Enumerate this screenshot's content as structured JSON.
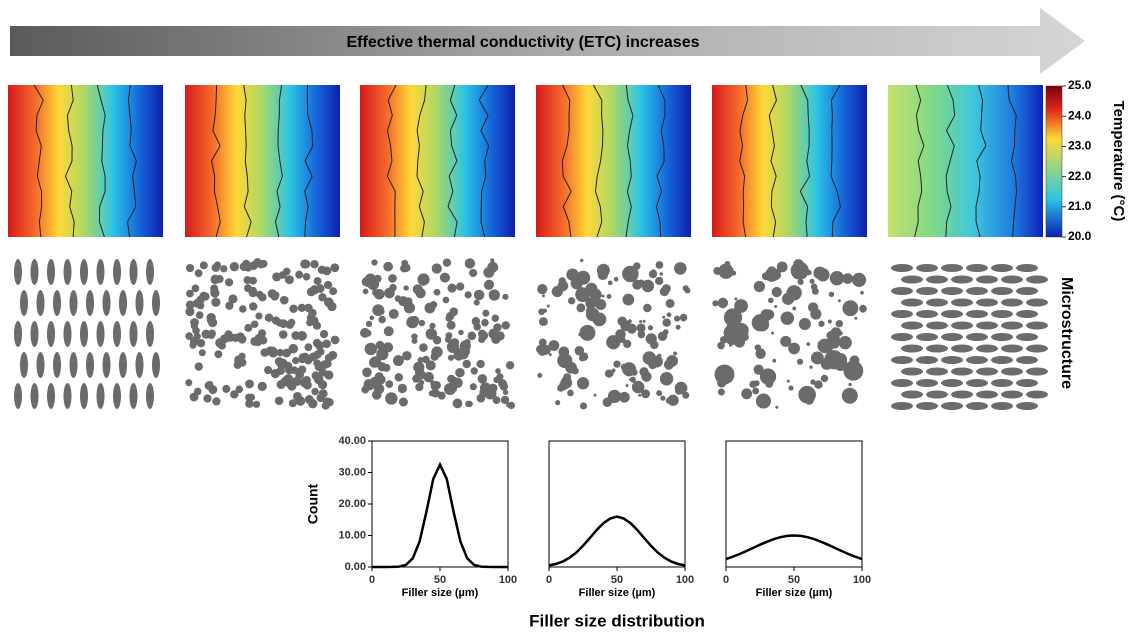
{
  "banner": "Effective thermal conductivity (ETC) increases",
  "colorbar": {
    "label": "Temperature (°C)",
    "lim": [
      20,
      25
    ],
    "ticks": [
      {
        "value": 20,
        "label": "20.0"
      },
      {
        "value": 21,
        "label": "21.0"
      },
      {
        "value": 22,
        "label": "22.0"
      },
      {
        "value": 23,
        "label": "23.0"
      },
      {
        "value": 24,
        "label": "24.0"
      },
      {
        "value": 25,
        "label": "25.0"
      }
    ]
  },
  "microstructure_label": "Microstructure",
  "caption": "Filler size distribution",
  "chart_data": [
    {
      "type": "line",
      "x": [
        0,
        5,
        10,
        15,
        20,
        25,
        30,
        35,
        40,
        45,
        50,
        55,
        60,
        65,
        70,
        75,
        80,
        85,
        90,
        95,
        100
      ],
      "values": [
        0,
        0,
        0,
        0.02,
        0.13,
        0.68,
        2.75,
        8.1,
        17.5,
        27.9,
        32.5,
        27.9,
        17.5,
        8.1,
        2.75,
        0.68,
        0.13,
        0.02,
        0,
        0,
        0
      ],
      "color": "#000000",
      "xlim": [
        0,
        100
      ],
      "xticks": [
        0,
        50,
        100
      ],
      "ylim": [
        0,
        40
      ],
      "yticks": [
        {
          "value": 0,
          "label": "0.00"
        },
        {
          "value": 10,
          "label": "10.00"
        },
        {
          "value": 20,
          "label": "20.00"
        },
        {
          "value": 30,
          "label": "30.00"
        },
        {
          "value": 40,
          "label": "40.00"
        }
      ],
      "ylabel": "Count",
      "xlabel": "Filler size (µm)"
    },
    {
      "type": "line",
      "x": [
        0,
        5,
        10,
        15,
        20,
        25,
        30,
        35,
        40,
        45,
        50,
        55,
        60,
        65,
        70,
        75,
        80,
        85,
        90,
        95,
        100
      ],
      "values": [
        0.5,
        0.96,
        1.73,
        2.92,
        4.58,
        6.72,
        9.18,
        11.7,
        13.9,
        15.4,
        16,
        15.4,
        13.9,
        11.7,
        9.18,
        6.72,
        4.58,
        2.92,
        1.73,
        0.96,
        0.5
      ],
      "color": "#000000",
      "xlim": [
        0,
        100
      ],
      "xticks": [
        0,
        50,
        100
      ],
      "ylim": [
        0,
        40
      ],
      "xlabel": "Filler size (µm)"
    },
    {
      "type": "line",
      "x": [
        0,
        5,
        10,
        15,
        20,
        25,
        30,
        35,
        40,
        45,
        50,
        55,
        60,
        65,
        70,
        75,
        80,
        85,
        90,
        95,
        100
      ],
      "values": [
        2.5,
        3.26,
        4.12,
        5.07,
        6.07,
        7.07,
        8.01,
        8.83,
        9.46,
        9.86,
        10,
        9.86,
        9.46,
        8.83,
        8.01,
        7.07,
        6.07,
        5.07,
        4.12,
        3.26,
        2.5
      ],
      "color": "#000000",
      "xlim": [
        0,
        100
      ],
      "xticks": [
        0,
        50,
        100
      ],
      "ylim": [
        0,
        40
      ],
      "xlabel": "Filler size (µm)"
    }
  ]
}
